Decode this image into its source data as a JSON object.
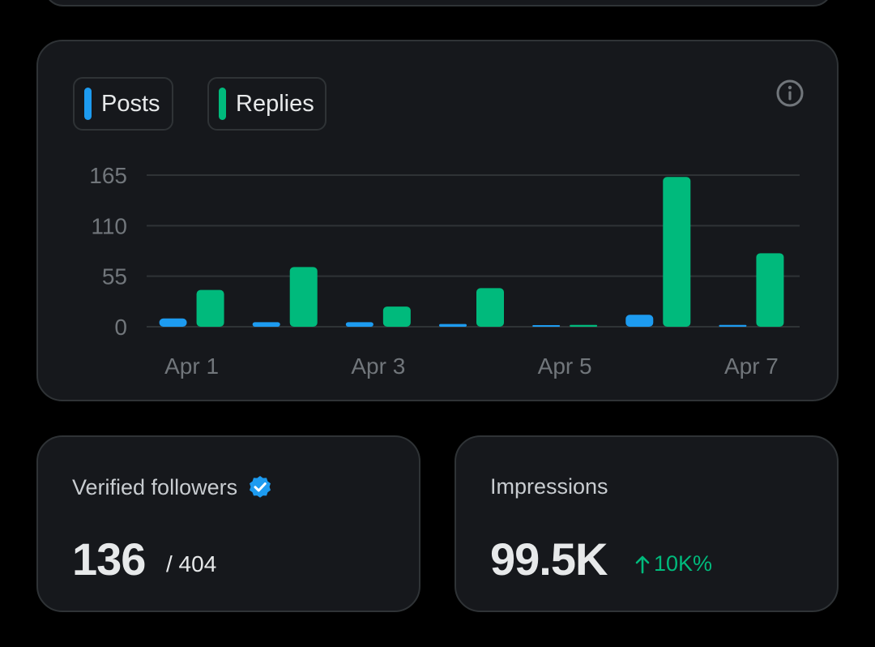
{
  "legend": {
    "posts_label": "Posts",
    "replies_label": "Replies"
  },
  "colors": {
    "posts": "#1d9bf0",
    "replies": "#00ba7c",
    "grid": "#2f3336",
    "tick": "#71767b"
  },
  "chart_data": {
    "type": "bar",
    "categories": [
      "Apr 1",
      "Apr 2",
      "Apr 3",
      "Apr 4",
      "Apr 5",
      "Apr 6",
      "Apr 7"
    ],
    "x_tick_labels": [
      "Apr 1",
      "Apr 3",
      "Apr 5",
      "Apr 7"
    ],
    "y_ticks": [
      "0",
      "55",
      "110",
      "165"
    ],
    "ylim": [
      0,
      165
    ],
    "grid": true,
    "legend_position": "top-left",
    "series": [
      {
        "name": "Posts",
        "values": [
          9,
          5,
          5,
          3,
          1,
          13,
          2
        ]
      },
      {
        "name": "Replies",
        "values": [
          40,
          65,
          22,
          42,
          2,
          163,
          80
        ]
      }
    ]
  },
  "stats": {
    "verified": {
      "title": "Verified followers",
      "value": "136",
      "total": "/ 404",
      "badge_icon": "verified-badge-icon"
    },
    "impressions": {
      "title": "Impressions",
      "value": "99.5K",
      "delta": "10K%",
      "delta_icon": "arrow-up-icon"
    }
  }
}
